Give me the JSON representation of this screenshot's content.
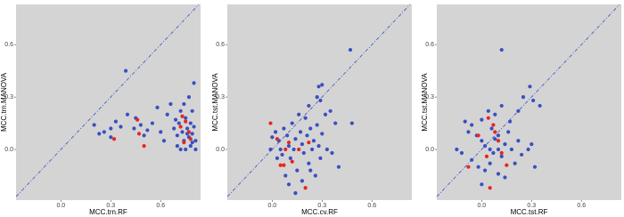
{
  "chart_data": [
    {
      "type": "scatter",
      "xlabel": "MCC.trn.RF",
      "ylabel": "MCC.trn.MANOVA",
      "xlim": [
        -0.27,
        0.84
      ],
      "ylim": [
        -0.29,
        0.83
      ],
      "xticks": [
        {
          "value": 0,
          "label": "0.0"
        },
        0.3,
        0.6
      ],
      "yticks": [
        {
          "value": 0,
          "label": "0.0"
        },
        0.3,
        0.6
      ],
      "series": [
        {
          "color": "#3a4fc0",
          "x": [
            0.39,
            0.2,
            0.23,
            0.26,
            0.3,
            0.3,
            0.33,
            0.36,
            0.4,
            0.44,
            0.45,
            0.48,
            0.5,
            0.52,
            0.55,
            0.58,
            0.6,
            0.62,
            0.64,
            0.66,
            0.68,
            0.7,
            0.7,
            0.71,
            0.72,
            0.73,
            0.74,
            0.75,
            0.75,
            0.76,
            0.77,
            0.77,
            0.78,
            0.78,
            0.79,
            0.79,
            0.8,
            0.8,
            0.81,
            0.81,
            0.72,
            0.69,
            0.74,
            0.76,
            0.79
          ],
          "y": [
            0.45,
            0.14,
            0.09,
            0.1,
            0.12,
            0.07,
            0.16,
            0.13,
            0.2,
            0.12,
            0.18,
            0.14,
            0.08,
            0.11,
            0.15,
            0.24,
            0.1,
            0.05,
            0.2,
            0.26,
            0.12,
            0.08,
            0.02,
            0.15,
            0.22,
            0.1,
            0.05,
            0.0,
            0.18,
            0.12,
            0.3,
            0.07,
            0.15,
            0.02,
            0.22,
            0.09,
            0.38,
            0.13,
            0.05,
            0.0,
            0.0,
            0.17,
            0.26,
            0.09,
            0.04
          ]
        },
        {
          "color": "#e8251f",
          "x": [
            0.32,
            0.46,
            0.47,
            0.5,
            0.72,
            0.74,
            0.75,
            0.77,
            0.78,
            0.73
          ],
          "y": [
            0.06,
            0.17,
            0.09,
            0.02,
            0.13,
            0.04,
            0.16,
            0.1,
            0.06,
            0.19
          ]
        }
      ]
    },
    {
      "type": "scatter",
      "xlabel": "MCC.cv.RF",
      "ylabel": "MCC.tst.MANOVA",
      "xlim": [
        -0.27,
        0.84
      ],
      "ylim": [
        -0.29,
        0.83
      ],
      "xticks": [
        {
          "value": 0,
          "label": "0.0"
        },
        0.3,
        0.6
      ],
      "yticks": [
        {
          "value": 0,
          "label": "0.0"
        },
        0.3,
        0.6
      ],
      "series": [
        {
          "color": "#3a4fc0",
          "x": [
            0.47,
            0.28,
            0.3,
            0.27,
            0.29,
            0.22,
            0.32,
            0.35,
            0.38,
            0.48,
            0.0,
            0.02,
            0.04,
            0.05,
            0.06,
            0.07,
            0.09,
            0.1,
            0.11,
            0.12,
            0.13,
            0.14,
            0.15,
            0.16,
            0.17,
            0.18,
            0.19,
            0.2,
            0.21,
            0.22,
            0.23,
            0.24,
            0.25,
            0.26,
            0.27,
            0.28,
            0.29,
            0.3,
            0.33,
            0.36,
            0.4,
            0.08,
            0.1,
            0.14,
            0.18,
            0.23,
            0.03,
            -0.01
          ],
          "y": [
            0.57,
            0.36,
            0.37,
            0.3,
            0.28,
            0.25,
            0.2,
            0.22,
            0.15,
            0.15,
            0.07,
            0.1,
            0.05,
            0.0,
            -0.03,
            0.12,
            0.08,
            0.02,
            -0.05,
            0.15,
            0.0,
            0.06,
            -0.12,
            0.2,
            0.1,
            0.03,
            -0.02,
            0.18,
            0.08,
            -0.08,
            0.12,
            0.0,
            0.05,
            -0.15,
            0.14,
            0.02,
            -0.05,
            0.09,
            0.0,
            -0.02,
            -0.1,
            -0.15,
            -0.2,
            -0.25,
            -0.18,
            -0.12,
            -0.05,
            0.0
          ]
        },
        {
          "color": "#e8251f",
          "x": [
            -0.01,
            0.03,
            0.05,
            0.07,
            0.08,
            0.1,
            0.12,
            0.16,
            0.2,
            0.22
          ],
          "y": [
            0.15,
            0.06,
            -0.09,
            -0.09,
            0.0,
            0.04,
            -0.07,
            0.0,
            -0.22,
            0.04
          ]
        }
      ]
    },
    {
      "type": "scatter",
      "xlabel": "MCC.tst.RF",
      "ylabel": "MCC.tst.MANOVA",
      "xlim": [
        -0.27,
        0.84
      ],
      "ylim": [
        -0.29,
        0.83
      ],
      "xticks": [
        {
          "value": 0,
          "label": "0.0"
        },
        0.3,
        0.6
      ],
      "yticks": [
        {
          "value": 0,
          "label": "0.0"
        },
        0.3,
        0.6
      ],
      "series": [
        {
          "color": "#3a4fc0",
          "x": [
            0.12,
            0.29,
            0.25,
            0.31,
            0.22,
            0.35,
            0.0,
            0.04,
            0.08,
            0.12,
            -0.1,
            -0.06,
            -0.08,
            -0.03,
            0.0,
            0.02,
            0.05,
            0.08,
            0.1,
            0.12,
            0.14,
            0.16,
            0.18,
            0.2,
            0.22,
            0.24,
            0.28,
            -0.12,
            -0.06,
            -0.02,
            0.02,
            0.05,
            0.1,
            0.14,
            0.0,
            -0.15,
            0.06,
            0.17,
            0.1,
            0.07,
            0.3,
            0.32
          ],
          "y": [
            0.57,
            0.36,
            0.3,
            0.28,
            0.22,
            0.25,
            0.17,
            0.22,
            0.2,
            0.25,
            0.16,
            0.14,
            0.1,
            0.08,
            0.05,
            0.02,
            0.0,
            0.06,
            0.0,
            -0.04,
            0.03,
            0.1,
            0.0,
            -0.08,
            0.05,
            -0.03,
            0.0,
            -0.02,
            -0.06,
            -0.1,
            -0.12,
            -0.08,
            -0.14,
            -0.16,
            -0.2,
            0.0,
            0.12,
            0.16,
            0.08,
            -0.02,
            0.03,
            -0.1
          ]
        },
        {
          "color": "#e8251f",
          "x": [
            -0.08,
            0.04,
            0.07,
            0.08,
            0.1,
            0.12,
            0.03,
            0.05,
            0.15,
            -0.02
          ],
          "y": [
            -0.1,
            0.18,
            0.14,
            0.1,
            0.05,
            -0.02,
            -0.04,
            -0.22,
            -0.09,
            0.08
          ]
        }
      ]
    }
  ]
}
